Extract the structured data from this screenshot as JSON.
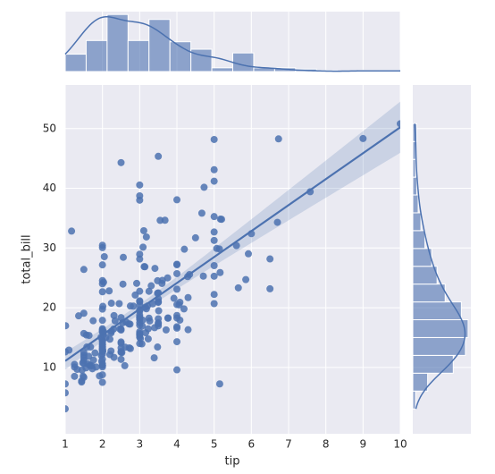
{
  "chart_data": {
    "type": "scatter",
    "xlabel": "tip",
    "ylabel": "total_bill",
    "color": "#4c72b0",
    "grid": true,
    "xlim": [
      1,
      10
    ],
    "ylim": [
      -1.1,
      57.3
    ],
    "xticks": [
      1,
      2,
      3,
      4,
      5,
      6,
      7,
      8,
      9,
      10
    ],
    "yticks": [
      10,
      20,
      30,
      40,
      50
    ],
    "x": [
      1.01,
      1.66,
      3.5,
      3.31,
      3.61,
      4.71,
      2.0,
      3.12,
      1.96,
      3.23,
      1.71,
      5.0,
      1.57,
      3.0,
      3.02,
      3.92,
      1.67,
      3.71,
      3.5,
      3.35,
      4.08,
      2.75,
      2.23,
      7.58,
      3.18,
      2.34,
      2.0,
      2.0,
      4.3,
      3.0,
      1.45,
      2.5,
      3.0,
      2.45,
      3.27,
      3.6,
      2.0,
      3.07,
      2.31,
      5.0,
      2.24,
      2.54,
      3.06,
      1.32,
      5.6,
      3.0,
      5.0,
      6.0,
      2.05,
      3.0,
      2.5,
      2.6,
      5.2,
      1.56,
      4.34,
      3.51,
      3.0,
      1.5,
      1.76,
      6.73,
      3.21,
      2.0,
      1.98,
      3.76,
      2.64,
      3.15,
      2.47,
      1.0,
      2.01,
      2.09,
      1.97,
      3.0,
      3.14,
      5.0,
      2.2,
      1.25,
      3.08,
      4.0,
      3.0,
      2.71,
      3.0,
      3.4,
      1.83,
      5.0,
      2.03,
      5.17,
      2.0,
      4.0,
      5.85,
      3.0,
      3.0,
      3.5,
      1.0,
      4.3,
      3.25,
      4.73,
      4.0,
      1.5,
      3.0,
      1.5,
      2.5,
      3.0,
      2.5,
      3.48,
      4.08,
      1.64,
      4.06,
      4.29,
      3.76,
      4.0,
      3.0,
      1.0,
      4.0,
      2.55,
      4.0,
      3.5,
      5.07,
      1.5,
      1.8,
      2.92,
      2.31,
      1.68,
      2.5,
      2.0,
      2.52,
      4.2,
      1.48,
      2.0,
      2.0,
      2.18,
      1.5,
      2.83,
      1.5,
      2.0,
      3.25,
      1.25,
      2.0,
      2.0,
      2.0,
      2.75,
      3.5,
      6.7,
      5.0,
      5.0,
      2.3,
      1.5,
      1.36,
      1.63,
      1.73,
      2.0,
      2.5,
      2.0,
      2.74,
      2.0,
      2.0,
      5.14,
      5.0,
      3.75,
      2.61,
      2.0,
      3.5,
      2.5,
      2.0,
      2.0,
      3.0,
      3.48,
      2.24,
      4.5,
      1.61,
      2.0,
      10.0,
      3.16,
      5.15,
      3.18,
      4.0,
      3.11,
      2.0,
      2.0,
      4.0,
      3.55,
      3.68,
      5.65,
      3.5,
      6.5,
      3.0,
      5.0,
      3.5,
      2.0,
      3.5,
      4.0,
      1.5,
      4.19,
      2.56,
      2.02,
      4.0,
      1.44,
      2.0,
      5.0,
      2.0,
      2.0,
      4.0,
      2.01,
      2.0,
      2.5,
      4.0,
      3.23,
      3.41,
      3.0,
      2.03,
      2.23,
      2.0,
      5.16,
      9.0,
      2.5,
      6.5,
      1.1,
      3.0,
      1.5,
      1.44,
      3.09,
      2.2,
      3.48,
      1.92,
      3.0,
      1.58,
      2.5,
      2.0,
      3.0,
      2.72,
      2.88,
      2.0,
      3.0,
      3.39,
      1.47,
      3.0,
      1.25,
      1.0,
      1.17,
      4.67,
      5.92,
      2.0,
      2.0,
      1.75,
      3.0
    ],
    "y": [
      16.99,
      10.34,
      21.01,
      23.68,
      24.59,
      25.29,
      8.77,
      26.88,
      15.04,
      14.78,
      10.27,
      35.26,
      15.42,
      18.43,
      14.83,
      21.58,
      10.33,
      16.29,
      16.97,
      20.65,
      17.92,
      20.29,
      15.77,
      39.42,
      19.82,
      17.81,
      13.37,
      12.69,
      21.7,
      19.65,
      9.55,
      18.35,
      15.06,
      20.69,
      17.78,
      24.06,
      16.31,
      16.93,
      18.69,
      31.27,
      16.04,
      17.46,
      13.94,
      9.68,
      30.4,
      18.29,
      22.23,
      32.4,
      28.55,
      18.04,
      12.54,
      10.29,
      34.81,
      9.94,
      25.56,
      19.49,
      38.01,
      26.41,
      11.24,
      48.27,
      20.29,
      13.81,
      11.02,
      18.29,
      17.59,
      20.08,
      16.45,
      3.07,
      20.23,
      15.01,
      12.02,
      17.07,
      26.86,
      25.28,
      14.73,
      10.51,
      17.92,
      27.2,
      22.76,
      17.29,
      19.44,
      16.66,
      10.07,
      32.68,
      15.98,
      34.83,
      13.03,
      18.28,
      24.71,
      21.16,
      28.97,
      22.49,
      5.75,
      16.32,
      22.75,
      40.17,
      27.28,
      12.03,
      21.01,
      12.46,
      11.35,
      15.38,
      44.3,
      22.42,
      20.92,
      15.36,
      20.49,
      25.21,
      18.24,
      14.31,
      14.0,
      7.25,
      38.07,
      23.95,
      25.71,
      17.31,
      29.93,
      10.65,
      12.43,
      24.08,
      11.69,
      13.42,
      14.26,
      15.95,
      12.48,
      29.8,
      8.52,
      14.52,
      11.38,
      22.82,
      19.08,
      20.27,
      11.17,
      12.26,
      18.26,
      8.51,
      10.33,
      14.15,
      16.0,
      13.16,
      17.47,
      34.3,
      41.19,
      27.05,
      16.43,
      8.35,
      18.64,
      11.87,
      9.78,
      7.51,
      14.07,
      13.13,
      17.26,
      24.55,
      19.77,
      29.85,
      48.17,
      25.0,
      13.39,
      16.49,
      21.5,
      12.66,
      16.21,
      13.81,
      17.51,
      24.52,
      20.76,
      31.71,
      10.59,
      10.63,
      50.81,
      15.81,
      7.25,
      31.85,
      16.82,
      32.9,
      17.89,
      14.48,
      9.6,
      34.63,
      34.65,
      23.33,
      45.35,
      23.17,
      40.55,
      20.69,
      20.9,
      30.46,
      18.15,
      23.1,
      15.69,
      19.81,
      28.44,
      15.48,
      16.58,
      7.56,
      10.34,
      43.11,
      13.0,
      13.51,
      18.71,
      12.74,
      13.0,
      16.4,
      20.53,
      16.47,
      26.59,
      38.73,
      24.27,
      12.76,
      30.06,
      25.89,
      48.33,
      13.27,
      28.17,
      12.9,
      28.15,
      11.59,
      7.74,
      30.14,
      12.16,
      13.42,
      8.58,
      15.98,
      13.42,
      16.27,
      10.09,
      20.45,
      13.28,
      22.12,
      24.01,
      15.69,
      11.61,
      10.77,
      15.53,
      10.07,
      12.6,
      32.83,
      35.83,
      29.03,
      27.18,
      22.67,
      17.82,
      18.78
    ],
    "x_hist": {
      "bins": [
        1,
        1.5625,
        2.125,
        2.6875,
        3.25,
        3.8125,
        4.375,
        4.9375,
        5.5,
        6.0625,
        6.625,
        7.1875,
        7.75,
        8.3125,
        8.875,
        9.4375,
        10
      ],
      "counts": [
        14,
        25,
        46,
        25,
        42,
        24,
        18,
        3,
        15,
        3,
        3,
        2,
        1,
        0,
        1,
        1
      ]
    },
    "y_hist": {
      "bins": [
        3.07,
        6.05,
        9.04,
        12.02,
        15.01,
        17.99,
        20.97,
        23.96,
        26.94,
        29.92,
        32.91,
        35.89,
        38.88,
        41.86,
        44.84,
        47.83,
        50.81
      ],
      "counts": [
        2,
        11,
        30,
        39,
        41,
        36,
        24,
        18,
        14,
        9,
        6,
        4,
        3,
        2,
        2,
        3
      ]
    }
  }
}
